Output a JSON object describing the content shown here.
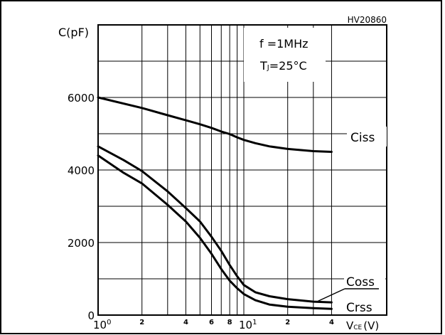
{
  "chart_data": {
    "type": "line",
    "figure_id": "HV20860",
    "ylabel": "C(pF)",
    "xlabel_main": "V",
    "xlabel_sub": "CE",
    "xlabel_unit": "(V)",
    "xscale": "log",
    "xlim": [
      1,
      50
    ],
    "ylim": [
      0,
      8000
    ],
    "grid": true,
    "y_ticks": [
      {
        "value": 0,
        "label": "0"
      },
      {
        "value": 2000,
        "label": "2000"
      },
      {
        "value": 4000,
        "label": "4000"
      },
      {
        "value": 6000,
        "label": "6000"
      }
    ],
    "x_ticks": [
      {
        "value": 1,
        "base": "10",
        "exp": "0"
      },
      {
        "value": 2,
        "label": "2"
      },
      {
        "value": 4,
        "label": "4"
      },
      {
        "value": 6,
        "label": "6"
      },
      {
        "value": 8,
        "label": "8"
      },
      {
        "value": 10,
        "base": "10",
        "exp": "1"
      },
      {
        "value": 20,
        "label": "2"
      },
      {
        "value": 40,
        "label": "4"
      }
    ],
    "conditions": {
      "freq_label": "f =1MHz",
      "temp_main": "T",
      "temp_sub": "J",
      "temp_value": "=25°C"
    },
    "series": [
      {
        "name": "Ciss",
        "x": [
          1,
          2,
          3,
          4,
          5,
          6,
          7,
          8,
          9,
          10,
          12,
          15,
          20,
          30,
          40
        ],
        "y": [
          6000,
          5710,
          5510,
          5370,
          5260,
          5160,
          5060,
          4990,
          4900,
          4830,
          4740,
          4650,
          4580,
          4520,
          4500
        ]
      },
      {
        "name": "Coss",
        "x": [
          1,
          1.5,
          2,
          3,
          4,
          5,
          6,
          7,
          8,
          9,
          10,
          12,
          15,
          20,
          30,
          40
        ],
        "y": [
          4650,
          4270,
          3970,
          3410,
          2950,
          2580,
          2160,
          1770,
          1380,
          1070,
          830,
          630,
          520,
          440,
          370,
          350
        ]
      },
      {
        "name": "Crss",
        "x": [
          1,
          1.5,
          2,
          3,
          4,
          5,
          6,
          7,
          8,
          9,
          10,
          12,
          15,
          20,
          30,
          40
        ],
        "y": [
          4400,
          3920,
          3630,
          3040,
          2580,
          2130,
          1690,
          1270,
          950,
          740,
          580,
          410,
          290,
          230,
          190,
          170
        ]
      }
    ]
  }
}
